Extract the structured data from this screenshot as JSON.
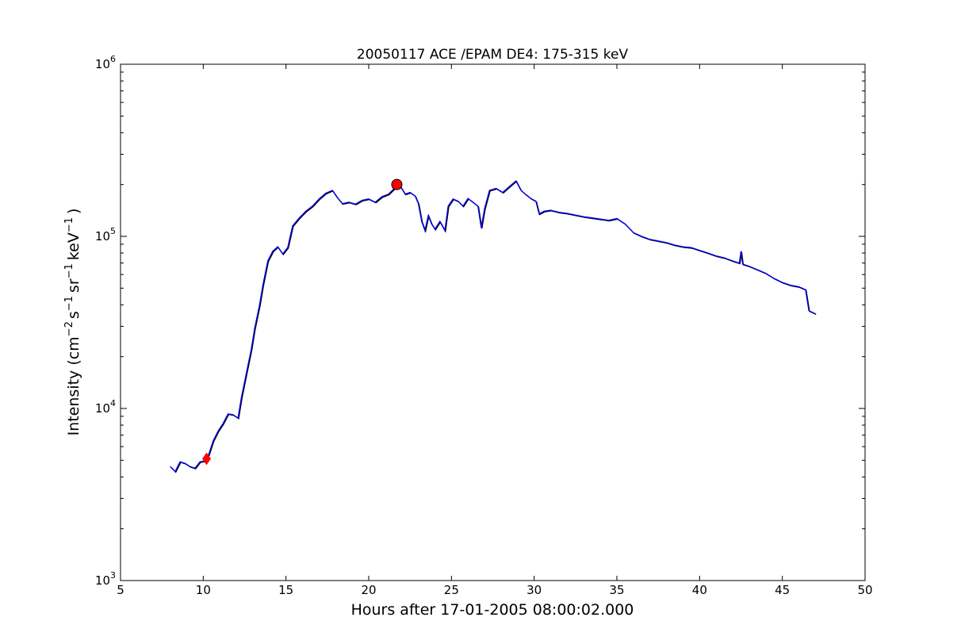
{
  "chart_data": {
    "type": "line",
    "title": "20050117 ACE /EPAM DE4: 175-315 keV",
    "xlabel": "Hours after 17-01-2005 08:00:02.000",
    "ylabel": {
      "prefix": "Intensity (cm",
      "exp1": "−2",
      "mid1": "s",
      "exp2": "−1",
      "mid2": "sr",
      "exp3": "−1",
      "mid3": "keV",
      "exp4": "−1",
      "suffix": ")"
    },
    "xlim": [
      5,
      50
    ],
    "ylim": [
      1000,
      1000000
    ],
    "yscale": "log",
    "grid": false,
    "xticks": [
      5,
      10,
      15,
      20,
      25,
      30,
      35,
      40,
      45,
      50
    ],
    "yticks": [
      {
        "value": 1000,
        "base": "10",
        "exp": "3"
      },
      {
        "value": 10000,
        "base": "10",
        "exp": "4"
      },
      {
        "value": 100000,
        "base": "10",
        "exp": "5"
      },
      {
        "value": 1000000,
        "base": "10",
        "exp": "6"
      }
    ],
    "series": [
      {
        "color": "#0000ff",
        "points": [
          [
            8.0,
            4600
          ],
          [
            8.3,
            4300
          ],
          [
            8.6,
            4900
          ],
          [
            8.9,
            4800
          ],
          [
            9.2,
            4600
          ],
          [
            9.5,
            4500
          ],
          [
            9.8,
            4900
          ],
          [
            10.1,
            4950
          ],
          [
            10.3,
            5300
          ],
          [
            10.6,
            6500
          ],
          [
            10.9,
            7400
          ],
          [
            11.2,
            8200
          ],
          [
            11.5,
            9300
          ],
          [
            11.8,
            9200
          ],
          [
            12.1,
            8800
          ],
          [
            12.3,
            11500
          ],
          [
            12.6,
            16000
          ],
          [
            12.9,
            22000
          ],
          [
            13.1,
            29000
          ],
          [
            13.4,
            40000
          ],
          [
            13.6,
            52000
          ],
          [
            13.9,
            72000
          ],
          [
            14.2,
            82000
          ],
          [
            14.5,
            87000
          ],
          [
            14.8,
            79000
          ],
          [
            15.1,
            86000
          ],
          [
            15.4,
            115000
          ],
          [
            15.8,
            128000
          ],
          [
            16.2,
            140000
          ],
          [
            16.6,
            150000
          ],
          [
            17.0,
            165000
          ],
          [
            17.4,
            178000
          ],
          [
            17.8,
            185000
          ],
          [
            18.1,
            168000
          ],
          [
            18.4,
            155000
          ],
          [
            18.8,
            158000
          ],
          [
            19.2,
            154000
          ],
          [
            19.6,
            162000
          ],
          [
            20.0,
            165000
          ],
          [
            20.4,
            158000
          ],
          [
            20.8,
            170000
          ],
          [
            21.2,
            176000
          ],
          [
            21.6,
            192000
          ],
          [
            21.9,
            196000
          ],
          [
            22.2,
            176000
          ],
          [
            22.5,
            180000
          ],
          [
            22.8,
            172000
          ],
          [
            23.0,
            155000
          ],
          [
            23.2,
            122000
          ],
          [
            23.4,
            108000
          ],
          [
            23.6,
            132000
          ],
          [
            23.8,
            118000
          ],
          [
            24.0,
            110000
          ],
          [
            24.3,
            122000
          ],
          [
            24.6,
            108000
          ],
          [
            24.8,
            150000
          ],
          [
            25.1,
            165000
          ],
          [
            25.4,
            160000
          ],
          [
            25.7,
            150000
          ],
          [
            26.0,
            166000
          ],
          [
            26.3,
            158000
          ],
          [
            26.6,
            150000
          ],
          [
            26.8,
            112000
          ],
          [
            27.0,
            145000
          ],
          [
            27.3,
            185000
          ],
          [
            27.7,
            190000
          ],
          [
            28.1,
            180000
          ],
          [
            28.5,
            195000
          ],
          [
            28.9,
            210000
          ],
          [
            29.2,
            185000
          ],
          [
            29.5,
            175000
          ],
          [
            29.8,
            166000
          ],
          [
            30.1,
            160000
          ],
          [
            30.3,
            135000
          ],
          [
            30.6,
            140000
          ],
          [
            31.0,
            142000
          ],
          [
            31.5,
            138000
          ],
          [
            32.0,
            136000
          ],
          [
            32.5,
            133000
          ],
          [
            33.0,
            130000
          ],
          [
            33.5,
            128000
          ],
          [
            34.0,
            126000
          ],
          [
            34.5,
            124000
          ],
          [
            35.0,
            127000
          ],
          [
            35.5,
            118000
          ],
          [
            36.0,
            105000
          ],
          [
            36.5,
            100000
          ],
          [
            37.0,
            96000
          ],
          [
            37.5,
            94000
          ],
          [
            38.0,
            92000
          ],
          [
            38.5,
            89000
          ],
          [
            39.0,
            87000
          ],
          [
            39.5,
            86000
          ],
          [
            40.0,
            83000
          ],
          [
            40.5,
            80000
          ],
          [
            41.0,
            77000
          ],
          [
            41.5,
            75000
          ],
          [
            42.0,
            72000
          ],
          [
            42.4,
            70000
          ],
          [
            42.5,
            82000
          ],
          [
            42.6,
            69000
          ],
          [
            43.0,
            67000
          ],
          [
            43.5,
            64000
          ],
          [
            44.0,
            61000
          ],
          [
            44.5,
            57000
          ],
          [
            45.0,
            54000
          ],
          [
            45.5,
            52000
          ],
          [
            46.0,
            51000
          ],
          [
            46.4,
            49000
          ],
          [
            46.6,
            37000
          ],
          [
            47.0,
            35500
          ]
        ]
      }
    ],
    "markers": [
      {
        "shape": "diamond",
        "x": 10.2,
        "y": 5100,
        "color": "#ff0000"
      },
      {
        "shape": "circle",
        "x": 21.7,
        "y": 200000,
        "color": "#ff0000"
      }
    ]
  }
}
